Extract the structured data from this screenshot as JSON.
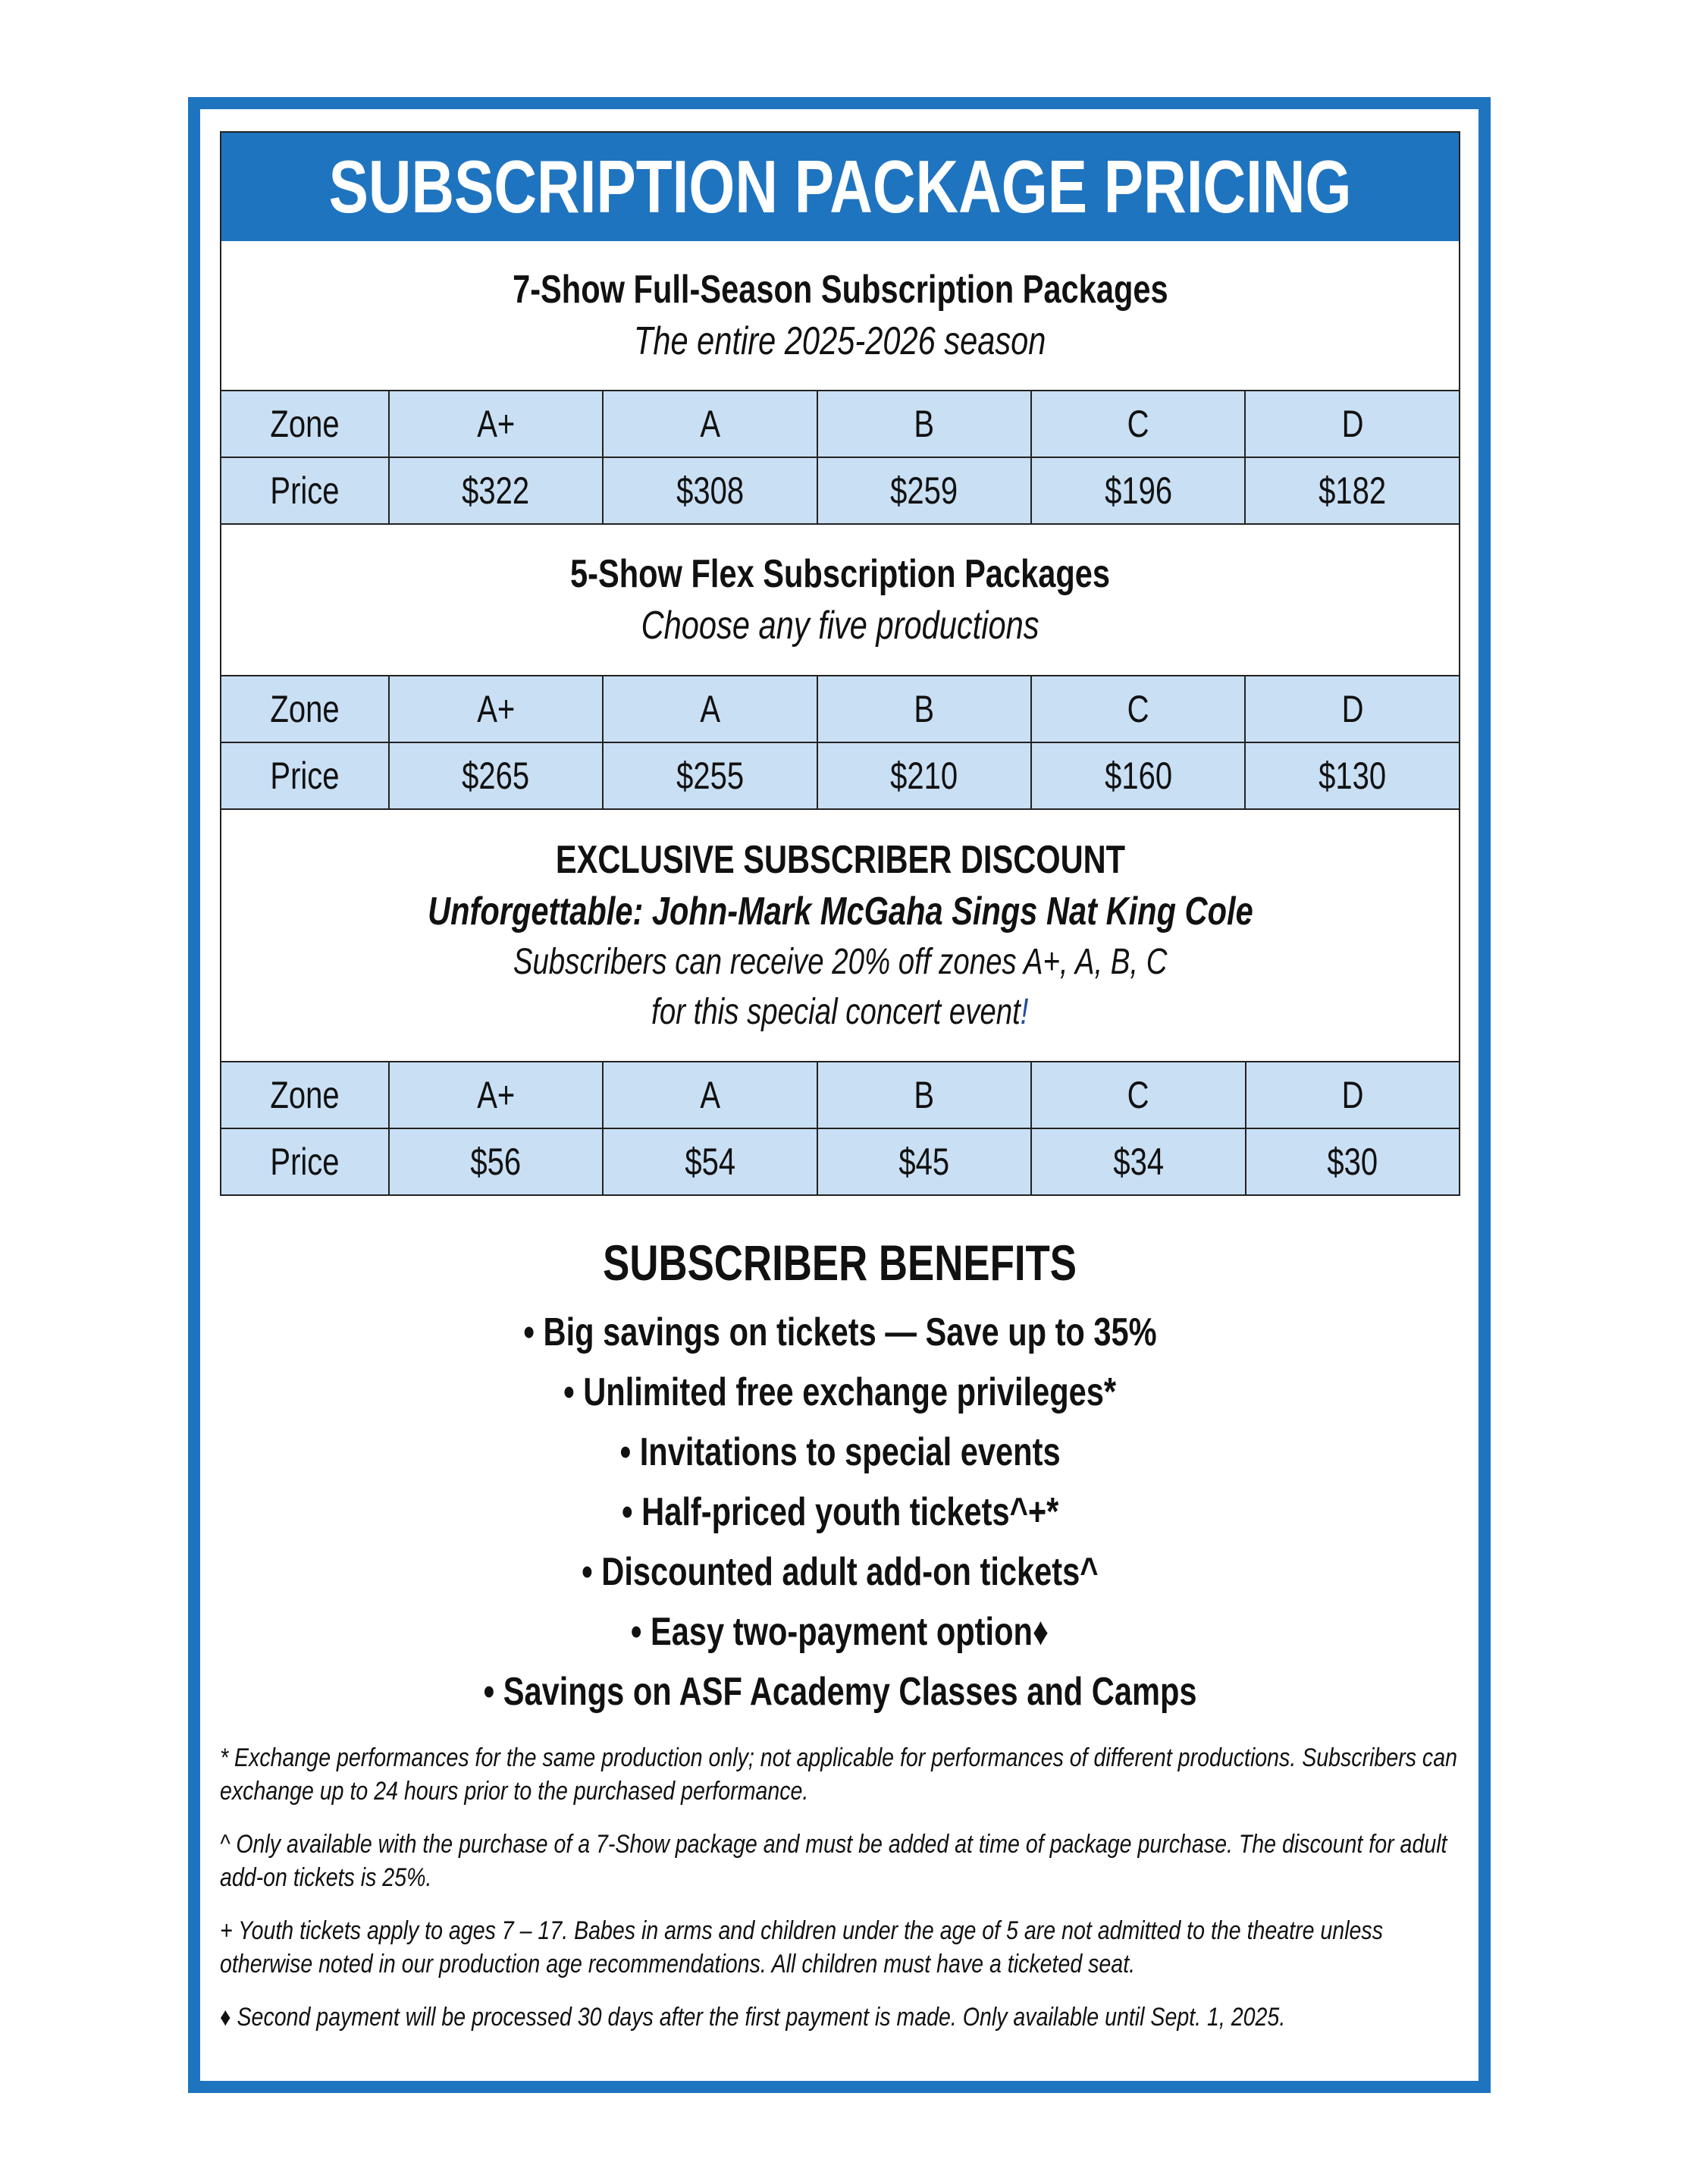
{
  "title": "SUBSCRIPTION PACKAGE PRICING",
  "sections": [
    {
      "heading": "7-Show Full-Season Subscription Packages",
      "subheading": "The entire 2025-2026 season",
      "zones": [
        "Zone",
        "A+",
        "A",
        "B",
        "C",
        "D"
      ],
      "prices": [
        "Price",
        "$322",
        "$308",
        "$259",
        "$196",
        "$182"
      ]
    },
    {
      "heading": "5-Show Flex Subscription Packages",
      "subheading": "Choose any five productions",
      "zones": [
        "Zone",
        "A+",
        "A",
        "B",
        "C",
        "D"
      ],
      "prices": [
        "Price",
        "$265",
        "$255",
        "$210",
        "$160",
        "$130"
      ]
    },
    {
      "heading": "EXCLUSIVE SUBSCRIBER DISCOUNT",
      "event": "Unforgettable: John-Mark McGaha Sings Nat King Cole",
      "line1": "Subscribers can receive 20% off zones A+, A, B, C",
      "line2": "for this special concert event",
      "line2_end": "!",
      "zones": [
        "Zone",
        "A+",
        "A",
        "B",
        "C",
        "D"
      ],
      "prices": [
        "Price",
        "$56",
        "$54",
        "$45",
        "$34",
        "$30"
      ]
    }
  ],
  "benefits": {
    "title": "SUBSCRIBER BENEFITS",
    "items": [
      "• Big savings on tickets — Save up to 35%",
      "• Unlimited free exchange privileges*",
      "• Invitations to special events",
      "• Half-priced youth tickets^+*",
      "• Discounted adult add-on tickets^",
      "• Easy two-payment option♦",
      "• Savings on ASF Academy Classes and Camps"
    ]
  },
  "footnotes": [
    "* Exchange performances for the same production only; not applicable for performances of different productions. Subscribers can exchange up to 24 hours prior to the purchased performance.",
    "^ Only available with the purchase of a 7-Show package and must be added at time of package purchase. The discount for adult add-on tickets is 25%.",
    "+ Youth tickets apply to ages 7 – 17. Babes in arms and children under the age of 5 are not admitted to the theatre unless otherwise noted in our production age recommendations. All children must have a ticketed seat.",
    "♦ Second payment will be processed 30 days after the first payment is made. Only available until Sept. 1, 2025."
  ],
  "colors": {
    "brand_blue": "#1f74c0",
    "table_fill": "#c9dff4"
  }
}
